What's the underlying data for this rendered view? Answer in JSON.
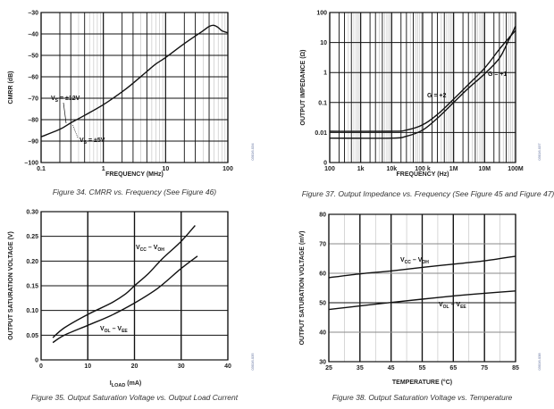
{
  "chart_data": [
    {
      "id": "fig34",
      "type": "line",
      "title": "Figure 34. CMRR vs. Frequency (See Figure 46)",
      "xlabel": "FREQUENCY (MHz)",
      "ylabel": "CMRR (dB)",
      "xscale": "log",
      "xlim": [
        0.1,
        100
      ],
      "ylim": [
        -100,
        -30
      ],
      "xticks": [
        {
          "v": 0.1,
          "label": "0.1"
        },
        {
          "v": 1,
          "label": "1"
        },
        {
          "v": 10,
          "label": "10"
        },
        {
          "v": 100,
          "label": "100"
        }
      ],
      "yticks": [
        {
          "v": -30,
          "label": "–30"
        },
        {
          "v": -40,
          "label": "–40"
        },
        {
          "v": -50,
          "label": "–50"
        },
        {
          "v": -60,
          "label": "–60"
        },
        {
          "v": -70,
          "label": "–70"
        },
        {
          "v": -80,
          "label": "–80"
        },
        {
          "v": -90,
          "label": "–90"
        },
        {
          "v": -100,
          "label": "–100"
        }
      ],
      "grid": true,
      "side_code": "03016-034",
      "series": [
        {
          "name": "VS = ±12V / ±5V",
          "x": [
            0.1,
            0.2,
            0.3,
            0.5,
            1,
            2,
            3,
            5,
            7,
            10,
            20,
            40,
            50,
            60,
            70,
            80,
            100
          ],
          "y": [
            -88,
            -84.5,
            -81.5,
            -78,
            -73,
            -67,
            -63,
            -57.5,
            -54,
            -51,
            -44.5,
            -38.5,
            -36.5,
            -36,
            -37,
            -38.5,
            -39.5
          ]
        }
      ],
      "annotations": [
        {
          "text": "V",
          "sub": "S",
          "rest": " = ±12V"
        },
        {
          "text": "V",
          "sub": "S",
          "rest": " = ±5V"
        }
      ]
    },
    {
      "id": "fig37",
      "type": "line",
      "title": "Figure 37. Output Impedance vs. Frequency (See Figure 45 and Figure 47)",
      "xlabel": "FREQUENCY (Hz)",
      "ylabel": "OUTPUT IMPEDANCE (Ω)",
      "xscale": "log",
      "yscale": "log",
      "xlim": [
        100,
        100000000
      ],
      "ylim": [
        0.001,
        100
      ],
      "xticks": [
        {
          "v": 100,
          "label": "100"
        },
        {
          "v": 1000,
          "label": "1k"
        },
        {
          "v": 10000,
          "label": "10k"
        },
        {
          "v": 100000,
          "label": "100 k"
        },
        {
          "v": 1000000,
          "label": "1M"
        },
        {
          "v": 10000000,
          "label": "10M"
        },
        {
          "v": 100000000,
          "label": "100M"
        }
      ],
      "yticks": [
        {
          "v": 0.001,
          "label": "0"
        },
        {
          "v": 0.01,
          "label": "0.01"
        },
        {
          "v": 0.1,
          "label": "0.1"
        },
        {
          "v": 1,
          "label": "1"
        },
        {
          "v": 10,
          "label": "10"
        },
        {
          "v": 100,
          "label": "100"
        }
      ],
      "grid": true,
      "side_code": "03016-037",
      "series": [
        {
          "name": "G = +2",
          "x": [
            100,
            10000,
            30000,
            100000,
            300000,
            1000000,
            3000000,
            10000000,
            30000000,
            60000000,
            100000000
          ],
          "y": [
            0.011,
            0.011,
            0.012,
            0.018,
            0.04,
            0.13,
            0.4,
            1.4,
            6,
            14,
            25
          ]
        },
        {
          "name": "G = +1",
          "x": [
            100,
            10000,
            30000,
            100000,
            300000,
            1000000,
            3000000,
            10000000,
            30000000,
            60000000,
            100000000
          ],
          "y": [
            0.0065,
            0.0065,
            0.0075,
            0.012,
            0.03,
            0.1,
            0.3,
            0.9,
            3,
            12,
            35
          ]
        }
      ],
      "annotations": [
        {
          "text": "G = +2"
        },
        {
          "text": "G = +1"
        }
      ]
    },
    {
      "id": "fig35",
      "type": "line",
      "title": "Figure 35. Output Saturation Voltage vs. Output Load Current",
      "xlabel": "I",
      "xlabel_sub": "LOAD",
      "xlabel_rest": " (mA)",
      "ylabel": "OUTPUT SATURATION VOLTAGE (V)",
      "xlim": [
        0,
        40
      ],
      "ylim": [
        0,
        0.3
      ],
      "xticks": [
        {
          "v": 0,
          "label": "0"
        },
        {
          "v": 10,
          "label": "10"
        },
        {
          "v": 20,
          "label": "20"
        },
        {
          "v": 30,
          "label": "30"
        },
        {
          "v": 40,
          "label": "40"
        }
      ],
      "yticks": [
        {
          "v": 0,
          "label": "0"
        },
        {
          "v": 0.05,
          "label": "0.05"
        },
        {
          "v": 0.1,
          "label": "0.10"
        },
        {
          "v": 0.15,
          "label": "0.15"
        },
        {
          "v": 0.2,
          "label": "0.20"
        },
        {
          "v": 0.25,
          "label": "0.25"
        },
        {
          "v": 0.3,
          "label": "0.30"
        }
      ],
      "grid": true,
      "side_code": "03016-035",
      "series": [
        {
          "name": "VCC – VOH",
          "x": [
            2.5,
            5,
            10,
            15,
            18,
            20,
            23,
            26,
            30,
            33
          ],
          "y": [
            0.045,
            0.065,
            0.092,
            0.115,
            0.133,
            0.15,
            0.175,
            0.205,
            0.24,
            0.272
          ]
        },
        {
          "name": "VOL – VEE",
          "x": [
            2.5,
            5,
            10,
            15,
            20,
            25,
            30,
            33.5
          ],
          "y": [
            0.035,
            0.05,
            0.07,
            0.09,
            0.115,
            0.145,
            0.185,
            0.21
          ]
        }
      ],
      "annotations": [
        {
          "v1": "V",
          "s1": "CC",
          "mid": " – ",
          "v2": "V",
          "s2": "OH"
        },
        {
          "v1": "V",
          "s1": "OL",
          "mid": " – ",
          "v2": "V",
          "s2": "EE"
        }
      ]
    },
    {
      "id": "fig38",
      "type": "line",
      "title": "Figure 38. Output Saturation Voltage vs. Temperature",
      "xlabel": "TEMPERATURE (°C)",
      "ylabel": "OUTPUT SATURATION VOLTAGE (mV)",
      "xlim": [
        25,
        85
      ],
      "ylim": [
        30,
        80
      ],
      "xticks": [
        {
          "v": 25,
          "label": "25"
        },
        {
          "v": 35,
          "label": "35"
        },
        {
          "v": 45,
          "label": "45"
        },
        {
          "v": 55,
          "label": "55"
        },
        {
          "v": 65,
          "label": "65"
        },
        {
          "v": 75,
          "label": "75"
        },
        {
          "v": 85,
          "label": "85"
        }
      ],
      "yticks": [
        {
          "v": 30,
          "label": "30"
        },
        {
          "v": 40,
          "label": "40"
        },
        {
          "v": 50,
          "label": "50"
        },
        {
          "v": 60,
          "label": "60"
        },
        {
          "v": 70,
          "label": "70"
        },
        {
          "v": 80,
          "label": "80"
        }
      ],
      "grid": true,
      "side_code": "03016-038",
      "series": [
        {
          "name": "VCC – VOH",
          "x": [
            25,
            35,
            45,
            55,
            65,
            75,
            85
          ],
          "y": [
            58.5,
            59.8,
            60.8,
            62,
            63.1,
            64.2,
            65.8
          ]
        },
        {
          "name": "VOL – VEE",
          "x": [
            25,
            35,
            45,
            55,
            65,
            75,
            85
          ],
          "y": [
            47.7,
            48.9,
            50.1,
            51.2,
            52.3,
            53.2,
            54
          ]
        }
      ],
      "annotations": [
        {
          "v1": "V",
          "s1": "CC",
          "mid": " – ",
          "v2": "V",
          "s2": "OH"
        },
        {
          "v1": "V",
          "s1": "OL",
          "mid": " – ",
          "v2": "V",
          "s2": "EE"
        }
      ]
    }
  ],
  "colors": {
    "line": "#111111",
    "major_grid": "#111111",
    "minor_grid": "#bdbdbd",
    "caption": "#333333"
  }
}
